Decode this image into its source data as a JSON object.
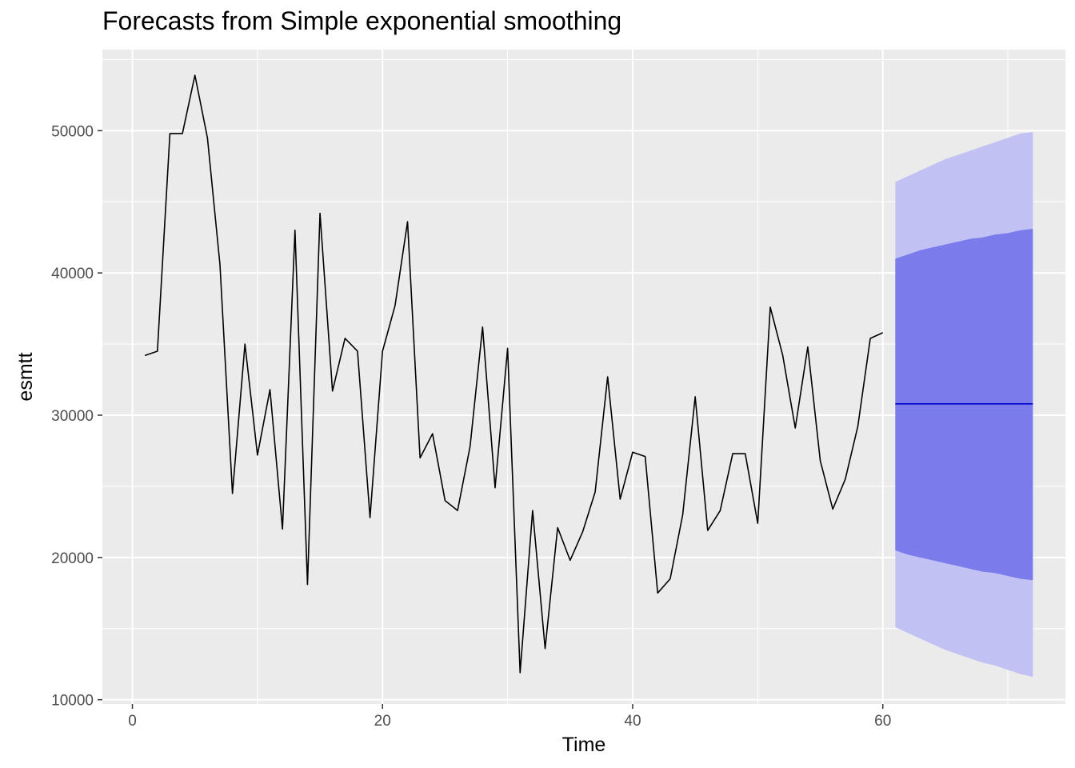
{
  "chart_data": {
    "type": "line",
    "title": "Forecasts from Simple exponential smoothing",
    "xlabel": "Time",
    "ylabel": "esmtt",
    "xlim": [
      -2.4,
      74.6
    ],
    "ylim": [
      9700,
      55700
    ],
    "x_ticks": [
      0,
      20,
      40,
      60
    ],
    "y_ticks": [
      10000,
      20000,
      30000,
      40000,
      50000
    ],
    "x_tick_labels": [
      "0",
      "20",
      "40",
      "60"
    ],
    "y_tick_labels": [
      "10000",
      "20000",
      "30000",
      "40000",
      "50000"
    ],
    "grid": true,
    "colors": {
      "panel": "#ebebeb",
      "grid": "#ffffff",
      "series": "#000000",
      "forecast": "#0000cc",
      "band80": "#7b7bec",
      "band95": "#c1c1f4"
    },
    "series": [
      {
        "x": [
          1,
          2,
          3,
          4,
          5,
          6,
          7,
          8,
          9,
          10,
          11,
          12,
          13,
          14,
          15,
          16,
          17,
          18,
          19,
          20,
          21,
          22,
          23,
          24,
          25,
          26,
          27,
          28,
          29,
          30,
          31,
          32,
          33,
          34,
          35,
          36,
          37,
          38,
          39,
          40,
          41,
          42,
          43,
          44,
          45,
          46,
          47,
          48,
          49,
          50,
          51,
          52,
          53,
          54,
          55,
          56,
          57,
          58,
          59,
          60
        ],
        "values": [
          34200,
          34500,
          49800,
          49800,
          53900,
          49500,
          40600,
          24500,
          35000,
          27200,
          31800,
          22000,
          43000,
          18100,
          44200,
          31700,
          35400,
          34500,
          22800,
          34500,
          37700,
          43600,
          27000,
          28700,
          24000,
          23300,
          27800,
          36200,
          24900,
          34700,
          11900,
          23300,
          13600,
          22100,
          19800,
          21800,
          24600,
          32700,
          24100,
          27400,
          27100,
          17500,
          18500,
          23000,
          31300,
          21900,
          23300,
          27300,
          27300,
          22400,
          37600,
          34200,
          29100,
          34800,
          26800,
          23400,
          25500,
          29200,
          35400,
          35800
        ]
      }
    ],
    "forecast": {
      "x": [
        61,
        62,
        63,
        64,
        65,
        66,
        67,
        68,
        69,
        70,
        71,
        72
      ],
      "mean": [
        30800,
        30800,
        30800,
        30800,
        30800,
        30800,
        30800,
        30800,
        30800,
        30800,
        30800,
        30800
      ],
      "lo80": [
        20500,
        20200,
        20000,
        19800,
        19600,
        19400,
        19200,
        19000,
        18900,
        18700,
        18500,
        18400
      ],
      "hi80": [
        41000,
        41300,
        41600,
        41800,
        42000,
        42200,
        42400,
        42500,
        42700,
        42800,
        43000,
        43100
      ],
      "lo95": [
        15100,
        14700,
        14300,
        13900,
        13500,
        13200,
        12900,
        12600,
        12400,
        12100,
        11800,
        11600
      ],
      "hi95": [
        46400,
        46800,
        47200,
        47600,
        48000,
        48300,
        48600,
        48900,
        49200,
        49500,
        49800,
        49900
      ]
    }
  }
}
